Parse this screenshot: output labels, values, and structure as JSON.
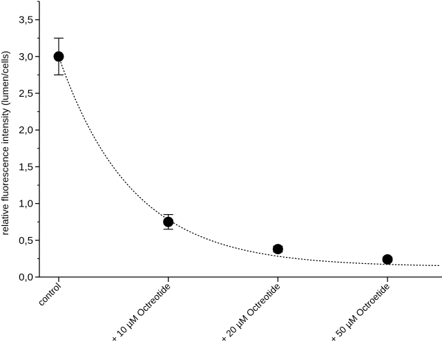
{
  "chart_data": {
    "type": "scatter",
    "title": "",
    "xlabel": "",
    "ylabel": "relative fluorescence intensity (lumen/cells)",
    "categories": [
      "control",
      "+ 10 µM Octreotide",
      "+ 20 µM Octreotide",
      "+ 50 µM Octroetide"
    ],
    "values": [
      3.0,
      0.75,
      0.38,
      0.24
    ],
    "error": [
      0.25,
      0.1,
      0.04,
      0.03
    ],
    "ylim": [
      0,
      3.75
    ],
    "yticks": [
      "0,0",
      "0,5",
      "1,0",
      "1,5",
      "2,0",
      "2,5",
      "3,0",
      "3,5"
    ],
    "trendline": {
      "style": "dotted",
      "kind": "exponential decay fit"
    },
    "grid": false,
    "legend": "none",
    "colors": {
      "marker": "#000000",
      "line": "#000000"
    }
  }
}
